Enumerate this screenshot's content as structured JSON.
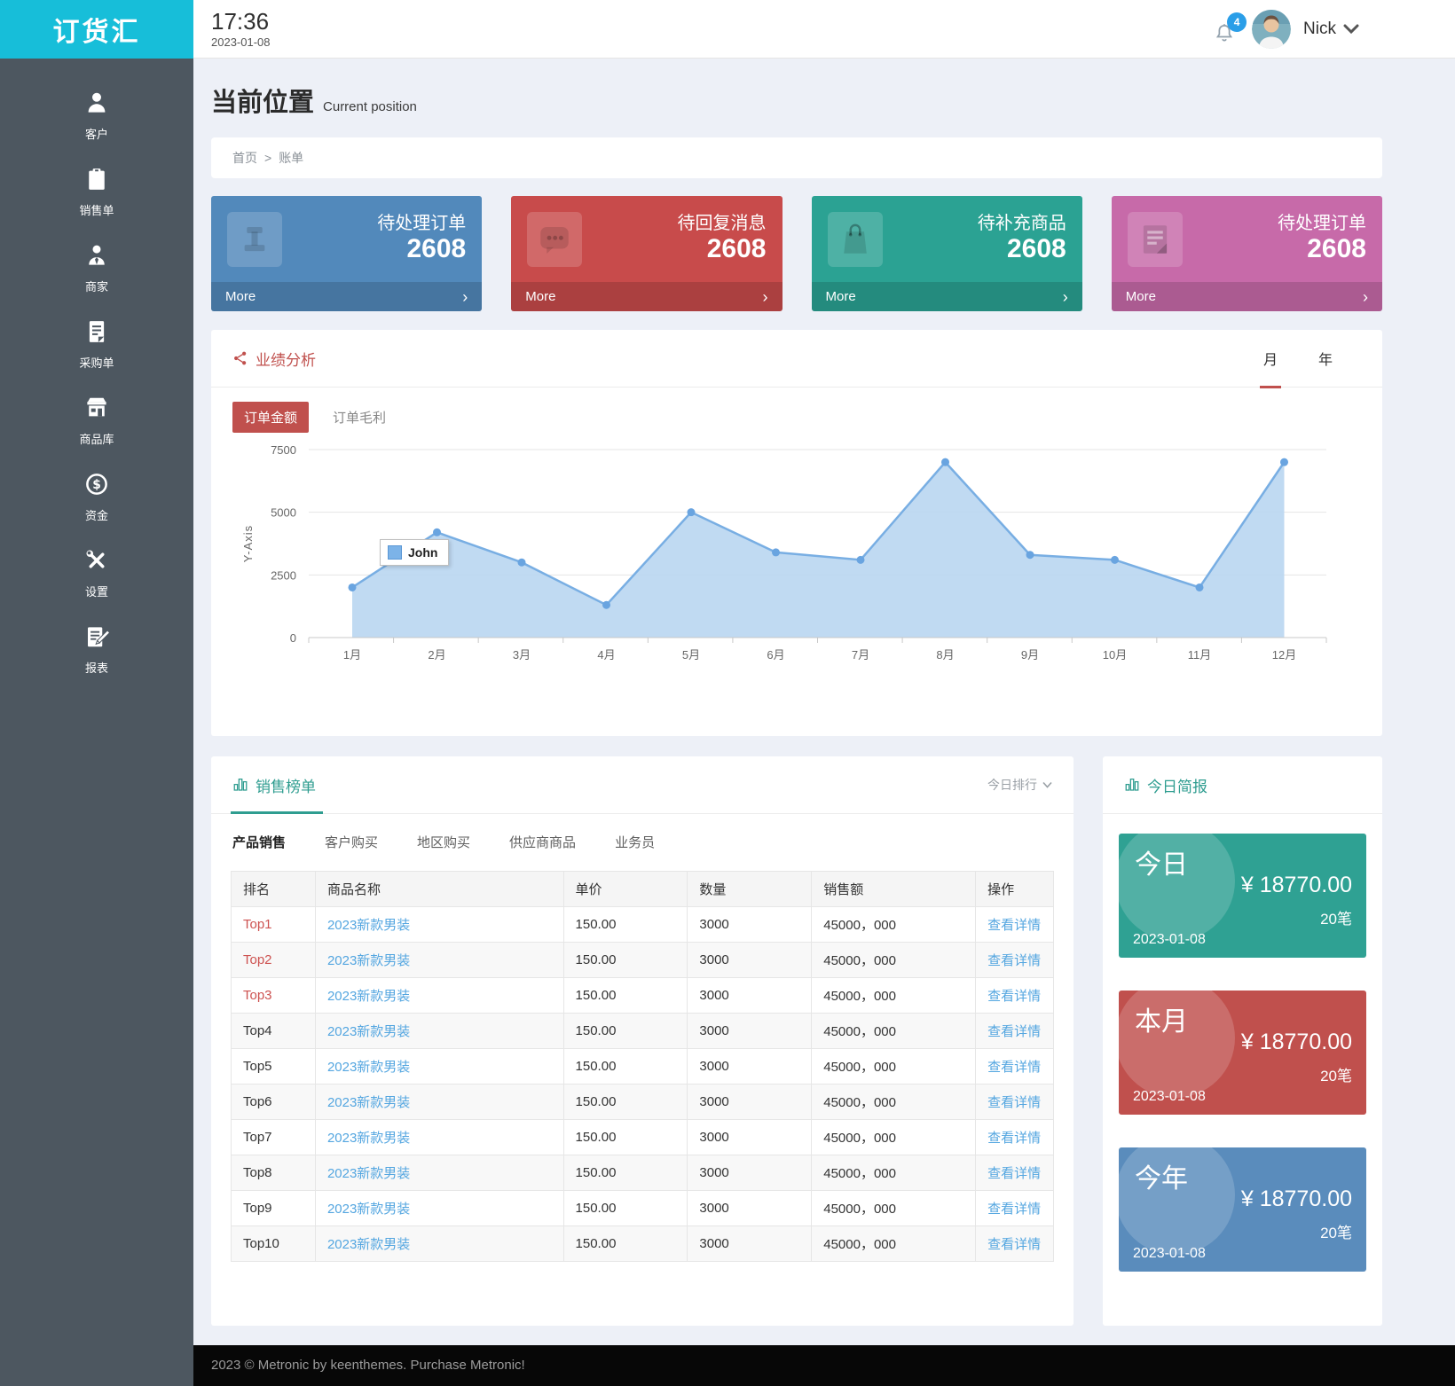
{
  "app": {
    "logo_text": "订货汇",
    "time": "17:36",
    "date": "2023-01-08",
    "notification_count": "4",
    "user_name": "Nick"
  },
  "sidebar": {
    "items": [
      {
        "label": "客户"
      },
      {
        "label": "销售单"
      },
      {
        "label": "商家"
      },
      {
        "label": "采购单"
      },
      {
        "label": "商品库"
      },
      {
        "label": "资金"
      },
      {
        "label": "设置"
      },
      {
        "label": "报表"
      }
    ]
  },
  "page": {
    "title": "当前位置",
    "subtitle": "Current position",
    "breadcrumb": {
      "home": "首页",
      "separator": ">",
      "current": "账单"
    }
  },
  "stat_cards": [
    {
      "title": "待处理订单",
      "value": "2608",
      "more_label": "More",
      "chevron": "›",
      "color": "#5289bb",
      "icon": "pin-icon"
    },
    {
      "title": "待回复消息",
      "value": "2608",
      "more_label": "More",
      "chevron": "›",
      "color": "#c84b4b",
      "icon": "chat-icon"
    },
    {
      "title": "待补充商品",
      "value": "2608",
      "more_label": "More",
      "chevron": "›",
      "color": "#2ba293",
      "icon": "shopping-bag-icon"
    },
    {
      "title": "待处理订单",
      "value": "2608",
      "more_label": "More",
      "chevron": "›",
      "color": "#c76aa9",
      "icon": "document-icon"
    }
  ],
  "performance": {
    "title": "业绩分析",
    "period_tabs": [
      {
        "label": "月",
        "active": true
      },
      {
        "label": "年",
        "active": false
      }
    ],
    "metric_tabs": [
      {
        "label": "订单金额",
        "active": true
      },
      {
        "label": "订单毛利",
        "active": false
      }
    ],
    "accent_color": "#c0504d"
  },
  "chart_data": {
    "type": "area",
    "title": "业绩分析",
    "x": [
      "1月",
      "2月",
      "3月",
      "4月",
      "5月",
      "6月",
      "7月",
      "8月",
      "9月",
      "10月",
      "11月",
      "12月"
    ],
    "series": [
      {
        "name": "John",
        "values": [
          2000,
          4200,
          3000,
          1300,
          5000,
          3400,
          3100,
          7000,
          3300,
          3100,
          2000,
          7000
        ]
      }
    ],
    "ylabel": "Y-Axis",
    "yticks": [
      0,
      2500,
      5000,
      7500
    ],
    "ylim": [
      0,
      7500
    ],
    "grid": true,
    "legend_label": "John",
    "line_color": "#78aee3",
    "fill_color": "#b9d6f1",
    "point_color": "#69a4e0"
  },
  "sales": {
    "title": "销售榜单",
    "filter_label": "今日排行",
    "tabs": [
      {
        "label": "产品销售",
        "active": true
      },
      {
        "label": "客户购买",
        "active": false
      },
      {
        "label": "地区购买",
        "active": false
      },
      {
        "label": "供应商商品",
        "active": false
      },
      {
        "label": "业务员",
        "active": false
      }
    ],
    "columns": [
      "排名",
      "商品名称",
      "单价",
      "数量",
      "销售额",
      "操作"
    ],
    "rows": [
      {
        "rank": "Top1",
        "product": "2023新款男装",
        "price": "150.00",
        "quantity": "3000",
        "sales_amount": "45000，000",
        "action": "查看详情"
      },
      {
        "rank": "Top2",
        "product": "2023新款男装",
        "price": "150.00",
        "quantity": "3000",
        "sales_amount": "45000，000",
        "action": "查看详情"
      },
      {
        "rank": "Top3",
        "product": "2023新款男装",
        "price": "150.00",
        "quantity": "3000",
        "sales_amount": "45000，000",
        "action": "查看详情"
      },
      {
        "rank": "Top4",
        "product": "2023新款男装",
        "price": "150.00",
        "quantity": "3000",
        "sales_amount": "45000，000",
        "action": "查看详情"
      },
      {
        "rank": "Top5",
        "product": "2023新款男装",
        "price": "150.00",
        "quantity": "3000",
        "sales_amount": "45000，000",
        "action": "查看详情"
      },
      {
        "rank": "Top6",
        "product": "2023新款男装",
        "price": "150.00",
        "quantity": "3000",
        "sales_amount": "45000，000",
        "action": "查看详情"
      },
      {
        "rank": "Top7",
        "product": "2023新款男装",
        "price": "150.00",
        "quantity": "3000",
        "sales_amount": "45000，000",
        "action": "查看详情"
      },
      {
        "rank": "Top8",
        "product": "2023新款男装",
        "price": "150.00",
        "quantity": "3000",
        "sales_amount": "45000，000",
        "action": "查看详情"
      },
      {
        "rank": "Top9",
        "product": "2023新款男装",
        "price": "150.00",
        "quantity": "3000",
        "sales_amount": "45000，000",
        "action": "查看详情"
      },
      {
        "rank": "Top10",
        "product": "2023新款男装",
        "price": "150.00",
        "quantity": "3000",
        "sales_amount": "45000，000",
        "action": "查看详情"
      }
    ],
    "rank_highlight_color": "#cd5250",
    "link_color": "#54a6e0",
    "accent_color": "#2f9d90"
  },
  "brief": {
    "title": "今日简报",
    "cards": [
      {
        "period": "今日",
        "amount": "¥ 18770.00",
        "count": "20笔",
        "date": "2023-01-08",
        "color": "#2fa193"
      },
      {
        "period": "本月",
        "amount": "¥ 18770.00",
        "count": "20笔",
        "date": "2023-01-08",
        "color": "#c0504d"
      },
      {
        "period": "今年",
        "amount": "¥ 18770.00",
        "count": "20笔",
        "date": "2023-01-08",
        "color": "#5a8cbc"
      }
    ]
  },
  "footer": {
    "text": "2023 © Metronic by keenthemes. Purchase Metronic!"
  }
}
